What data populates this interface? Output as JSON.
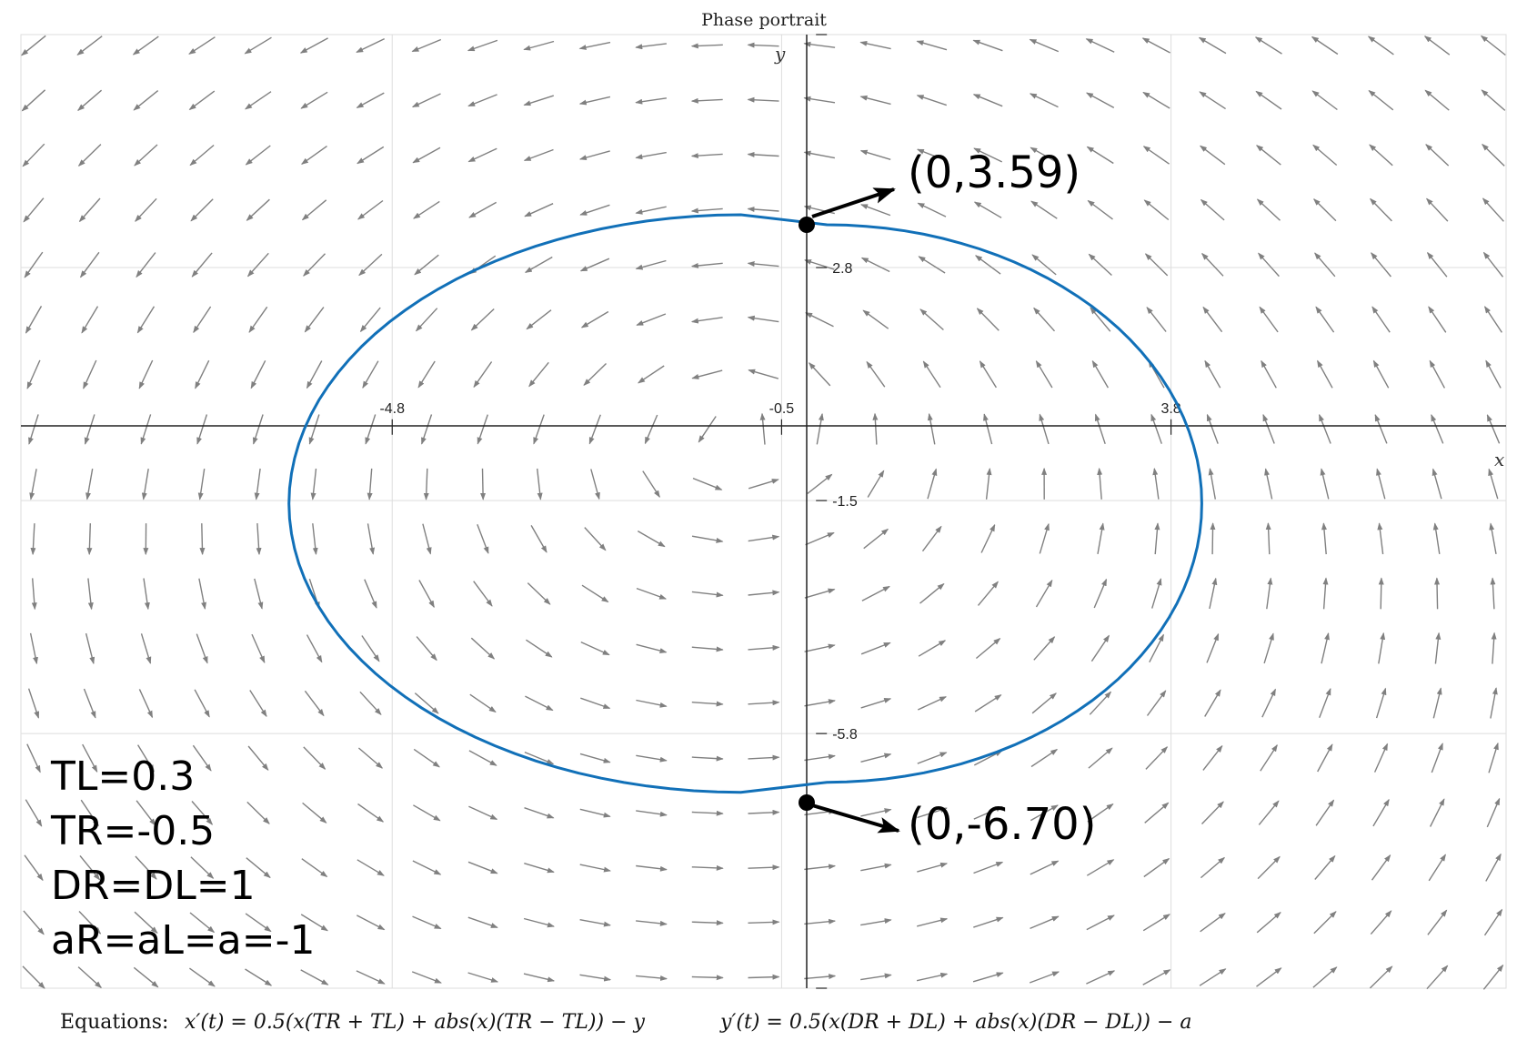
{
  "chart_data": {
    "type": "phase_portrait",
    "title": "Phase portrait",
    "xlabel": "x",
    "ylabel": "y",
    "xlim": [
      -8.9,
      7.5
    ],
    "ylim": [
      -10.5,
      7.1
    ],
    "x_ticks": [
      -4.8,
      -0.5,
      3.8
    ],
    "x_tick_labels": [
      "-4.8",
      "-0.5",
      "3.8"
    ],
    "y_ticks": [
      2.8,
      -1.5,
      -5.8
    ],
    "y_tick_labels": [
      "2.8",
      "-1.5",
      "-5.8"
    ],
    "grid": true,
    "vector_field": {
      "x_prime": "0.5*(x*(TR+TL) + abs(x)*(TR-TL)) - y",
      "y_prime": "0.5*(x*(DR+DL) + abs(x)*(DR-DL)) - a",
      "arrow_color": "#808080"
    },
    "parameters": {
      "TL": 0.3,
      "TR": -0.5,
      "DL": 1,
      "DR": 1,
      "a": -1
    },
    "orbit": {
      "color": "#1170b8",
      "right_half": {
        "center": [
          0,
          -1.555
        ],
        "semi_x": 4.14,
        "semi_y": 5.145
      },
      "left_half": {
        "center": [
          -0.95,
          -1.555
        ],
        "semi_x": 4.99,
        "semi_y": 5.33
      }
    },
    "marked_points": [
      {
        "x": 0,
        "y": 3.59,
        "label": "(0,3.59)"
      },
      {
        "x": 0,
        "y": -6.7,
        "label": "(0,-6.70)"
      }
    ],
    "parameter_text": [
      "TL=0.3",
      "TR=-0.5",
      "DR=DL=1",
      "aR=aL=a=-1"
    ],
    "equations": {
      "label": "Equations:",
      "x_eq": "x′(t) = 0.5(x(TR + TL) + abs(x)(TR − TL)) − y",
      "y_eq": "y′(t) = 0.5(x(DR + DL) + abs(x)(DR − DL)) − a"
    }
  }
}
